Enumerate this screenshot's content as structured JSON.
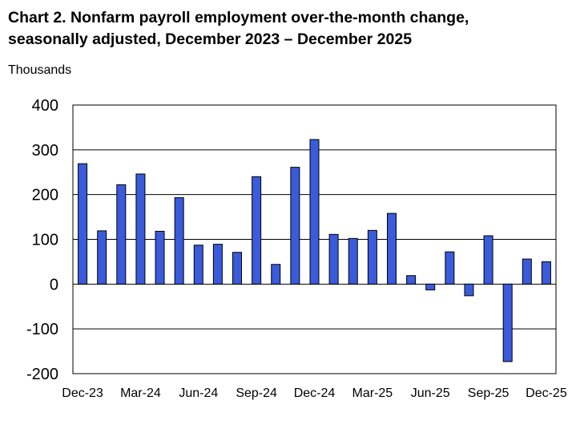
{
  "title_line1": "Chart 2. Nonfarm payroll employment over-the-month change,",
  "title_line2": "seasonally adjusted, December 2023 – December 2025",
  "units_label": "Thousands",
  "colors": {
    "bar_fill": "#3A5BDB",
    "bar_stroke": "#000000",
    "grid": "#000000"
  },
  "chart_data": {
    "type": "bar",
    "title": "Chart 2. Nonfarm payroll employment over-the-month change, seasonally adjusted, December 2023 – December 2025",
    "ylabel": "Thousands",
    "xlabel": "",
    "ylim": [
      -200,
      400
    ],
    "yticks": [
      400,
      300,
      200,
      100,
      0,
      -100,
      -200
    ],
    "ytick_labels": [
      "400",
      "300",
      "200",
      "100",
      "0",
      "-100",
      "-200"
    ],
    "grid": true,
    "legend": "none",
    "categories": [
      "Dec-23",
      "Jan-24",
      "Feb-24",
      "Mar-24",
      "Apr-24",
      "May-24",
      "Jun-24",
      "Jul-24",
      "Aug-24",
      "Sep-24",
      "Oct-24",
      "Nov-24",
      "Dec-24",
      "Jan-25",
      "Feb-25",
      "Mar-25",
      "Apr-25",
      "May-25",
      "Jun-25",
      "Jul-25",
      "Aug-25",
      "Sep-25",
      "Oct-25",
      "Nov-25",
      "Dec-25"
    ],
    "values": [
      269,
      119,
      222,
      246,
      118,
      193,
      87,
      89,
      71,
      240,
      44,
      261,
      323,
      111,
      102,
      120,
      158,
      19,
      -13,
      72,
      -26,
      108,
      -173,
      56,
      50
    ],
    "xtick_labels": [
      {
        "index": 0,
        "label": "Dec-23"
      },
      {
        "index": 3,
        "label": "Mar-24"
      },
      {
        "index": 6,
        "label": "Jun-24"
      },
      {
        "index": 9,
        "label": "Sep-24"
      },
      {
        "index": 12,
        "label": "Dec-24"
      },
      {
        "index": 15,
        "label": "Mar-25"
      },
      {
        "index": 18,
        "label": "Jun-25"
      },
      {
        "index": 21,
        "label": "Sep-25"
      },
      {
        "index": 24,
        "label": "Dec-25"
      }
    ]
  }
}
